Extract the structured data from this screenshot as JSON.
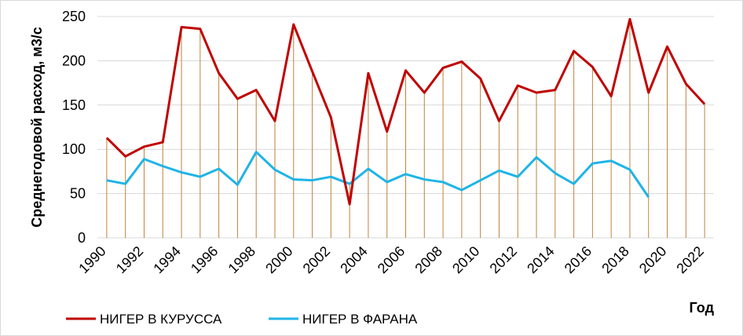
{
  "chart_data": {
    "type": "line",
    "ylabel": "Среднегодовой расход,  м3/с",
    "xlabel": "Год",
    "ylim": [
      0,
      250
    ],
    "yticks": [
      0,
      50,
      100,
      150,
      200,
      250
    ],
    "xticks": [
      "1990",
      "1992",
      "1994",
      "1996",
      "1998",
      "2000",
      "2002",
      "2004",
      "2006",
      "2008",
      "2010",
      "2012",
      "2014",
      "2016",
      "2018",
      "2020",
      "2022"
    ],
    "grid": "horizontal",
    "drop_lines": true,
    "legend_position": "bottom",
    "series": [
      {
        "name": "НИГЕР В КУРУССА",
        "color": "#c00000",
        "x": [
          1990,
          1991,
          1992,
          1993,
          1994,
          1995,
          1996,
          1997,
          1998,
          1999,
          2000,
          2001,
          2002,
          2003,
          2004,
          2005,
          2006,
          2007,
          2008,
          2009,
          2010,
          2011,
          2012,
          2013,
          2014,
          2015,
          2016,
          2017,
          2018,
          2019,
          2020,
          2021,
          2022
        ],
        "values": [
          113,
          92,
          103,
          108,
          238,
          236,
          186,
          157,
          167,
          132,
          241,
          188,
          136,
          38,
          186,
          120,
          189,
          164,
          192,
          199,
          180,
          132,
          172,
          164,
          167,
          211,
          193,
          160,
          247,
          164,
          216,
          174,
          151
        ]
      },
      {
        "name": "НИГЕР В ФАРАНА",
        "color": "#1fb4e6",
        "x": [
          1990,
          1991,
          1992,
          1993,
          1994,
          1995,
          1996,
          1997,
          1998,
          1999,
          2000,
          2001,
          2002,
          2003,
          2004,
          2005,
          2006,
          2007,
          2008,
          2009,
          2010,
          2011,
          2012,
          2013,
          2014,
          2015,
          2016,
          2017,
          2018,
          2019
        ],
        "values": [
          65,
          61,
          89,
          81,
          74,
          69,
          78,
          60,
          97,
          77,
          66,
          65,
          69,
          61,
          78,
          63,
          72,
          66,
          63,
          54,
          65,
          76,
          69,
          91,
          73,
          61,
          84,
          87,
          77,
          46
        ]
      }
    ]
  }
}
